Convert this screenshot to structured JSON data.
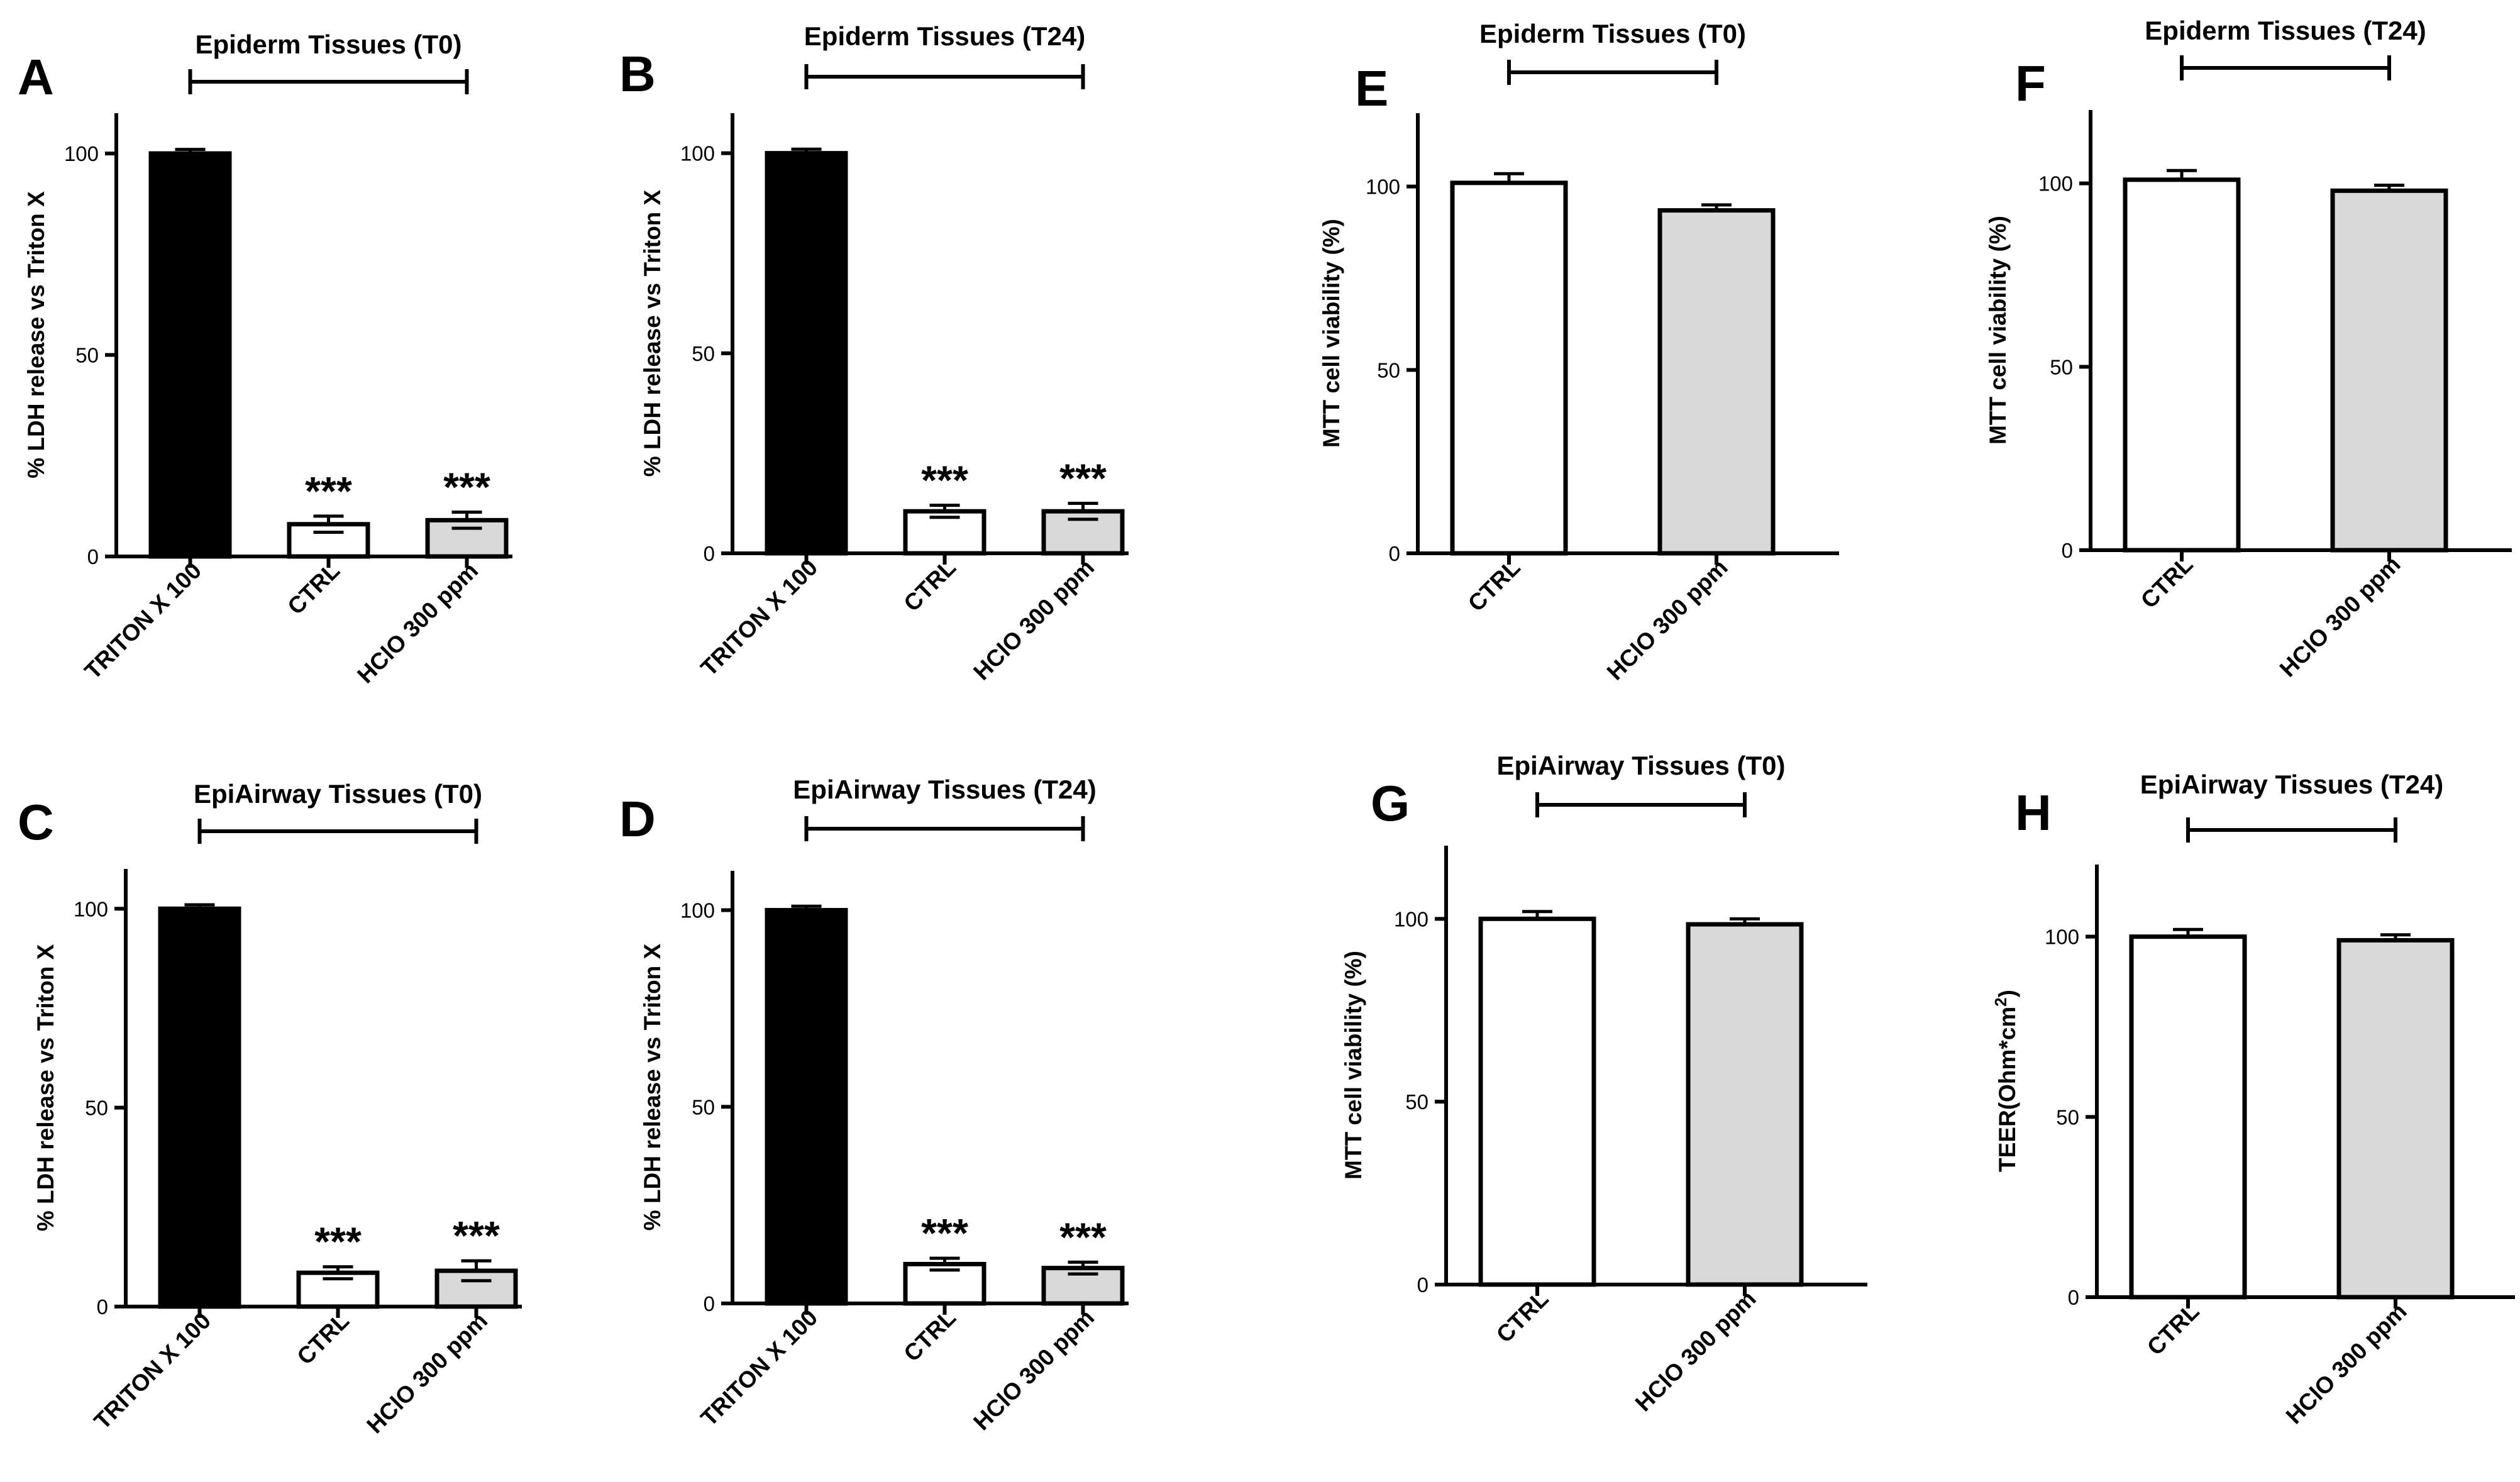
{
  "colors": {
    "TRITON X 100": "#000000",
    "CTRL": "#ffffff",
    "HClO 300 ppm": "#d9d9d9"
  },
  "chart_data": [
    {
      "panel": "A",
      "type": "bar",
      "title": "Epiderm Tissues (T0)",
      "ylabel": "% LDH release vs Triton X",
      "ylim": [
        0,
        110
      ],
      "yticks": [
        0,
        50,
        100
      ],
      "categories": [
        "TRITON X 100",
        "CTRL",
        "HClO 300 ppm"
      ],
      "values": [
        100,
        8,
        9
      ],
      "errors": [
        1,
        2,
        2
      ],
      "significance": [
        "",
        "***",
        "***"
      ],
      "bracket": [
        0,
        2
      ]
    },
    {
      "panel": "B",
      "type": "bar",
      "title": "Epiderm Tissues (T24)",
      "ylabel": "% LDH release vs Triton X",
      "ylim": [
        0,
        110
      ],
      "yticks": [
        0,
        50,
        100
      ],
      "categories": [
        "TRITON X 100",
        "CTRL",
        "HClO 300 ppm"
      ],
      "values": [
        100,
        10.5,
        10.5
      ],
      "errors": [
        1,
        1.5,
        2
      ],
      "significance": [
        "",
        "***",
        "***"
      ],
      "bracket": [
        0,
        2
      ]
    },
    {
      "panel": "C",
      "type": "bar",
      "title": "EpiAirway Tissues (T0)",
      "ylabel": "% LDH release vs Triton X",
      "ylim": [
        0,
        110
      ],
      "yticks": [
        0,
        50,
        100
      ],
      "categories": [
        "TRITON X 100",
        "CTRL",
        "HClO 300 ppm"
      ],
      "values": [
        100,
        8.5,
        9
      ],
      "errors": [
        1,
        1.5,
        2.5
      ],
      "significance": [
        "",
        "***",
        "***"
      ],
      "bracket": [
        0,
        2
      ]
    },
    {
      "panel": "D",
      "type": "bar",
      "title": "EpiAirway Tissues (T24)",
      "ylabel": "% LDH release vs Triton X",
      "ylim": [
        0,
        110
      ],
      "yticks": [
        0,
        50,
        100
      ],
      "categories": [
        "TRITON X 100",
        "CTRL",
        "HClO 300 ppm"
      ],
      "values": [
        100,
        10,
        9
      ],
      "errors": [
        1,
        1.5,
        1.5
      ],
      "significance": [
        "",
        "***",
        "***"
      ],
      "bracket": [
        0,
        2
      ]
    },
    {
      "panel": "E",
      "type": "bar",
      "title": "Epiderm Tissues (T0)",
      "ylabel": "MTT cell viability (%)",
      "ylim": [
        0,
        120
      ],
      "yticks": [
        0,
        50,
        100
      ],
      "categories": [
        "CTRL",
        "HClO 300 ppm"
      ],
      "values": [
        101,
        93.5
      ],
      "errors": [
        2.5,
        1.5
      ],
      "significance": [
        "",
        ""
      ],
      "bracket": [
        0,
        1
      ]
    },
    {
      "panel": "F",
      "type": "bar",
      "title": "Epiderm Tissues (T24)",
      "ylabel": "MTT cell viability (%)",
      "ylim": [
        0,
        120
      ],
      "yticks": [
        0,
        50,
        100
      ],
      "categories": [
        "CTRL",
        "HClO 300 ppm"
      ],
      "values": [
        101,
        98
      ],
      "errors": [
        2.5,
        1.5
      ],
      "significance": [
        "",
        ""
      ],
      "bracket": [
        0,
        1
      ]
    },
    {
      "panel": "G",
      "type": "bar",
      "title": "EpiAirway Tissues (T0)",
      "ylabel": "MTT cell viability (%)",
      "ylim": [
        0,
        120
      ],
      "yticks": [
        0,
        50,
        100
      ],
      "categories": [
        "CTRL",
        "HClO 300 ppm"
      ],
      "values": [
        100,
        98.5
      ],
      "errors": [
        2,
        1.5
      ],
      "significance": [
        "",
        ""
      ],
      "bracket": [
        0,
        1
      ]
    },
    {
      "panel": "H",
      "type": "bar",
      "title": "EpiAirway Tissues (T24)",
      "ylabel": "TEER(Ohm*cm",
      "ylabel_sup": "2",
      "ylabel_tail": ")",
      "ylim": [
        0,
        120
      ],
      "yticks": [
        0,
        50,
        100
      ],
      "categories": [
        "CTRL",
        "HClO 300 ppm"
      ],
      "values": [
        100,
        99
      ],
      "errors": [
        2,
        1.5
      ],
      "significance": [
        "",
        ""
      ],
      "bracket": [
        0,
        1
      ]
    }
  ]
}
